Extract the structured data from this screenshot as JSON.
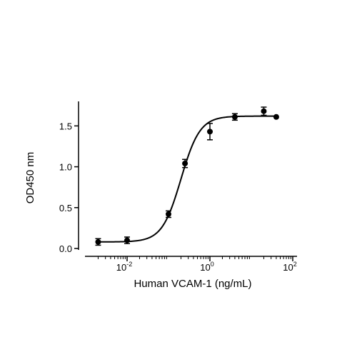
{
  "chart_data": {
    "type": "scatter",
    "xlabel": "Human VCAM-1 (ng/mL)",
    "ylabel": "OD450 nm",
    "xscale": "log10",
    "xlim": [
      0.001,
      100
    ],
    "ylim": [
      0,
      1.8
    ],
    "x_ticks": [
      {
        "value": 0.01,
        "base": "10",
        "exp": "-2"
      },
      {
        "value": 1,
        "base": "10",
        "exp": "0"
      },
      {
        "value": 100,
        "base": "10",
        "exp": "2"
      }
    ],
    "y_ticks": [
      {
        "value": 0.0,
        "label": "0.0"
      },
      {
        "value": 0.5,
        "label": "0.5"
      },
      {
        "value": 1.0,
        "label": "1.0"
      },
      {
        "value": 1.5,
        "label": "1.5"
      }
    ],
    "grid": false,
    "legend": "none",
    "colors": {
      "marker": "#000000",
      "curve": "#000000",
      "axis": "#000000"
    },
    "points": [
      {
        "x": 0.002,
        "y": 0.08,
        "err": 0.04
      },
      {
        "x": 0.01,
        "y": 0.1,
        "err": 0.04
      },
      {
        "x": 0.1,
        "y": 0.42,
        "err": 0.04
      },
      {
        "x": 0.25,
        "y": 1.04,
        "err": 0.05
      },
      {
        "x": 1.0,
        "y": 1.43,
        "err": 0.1
      },
      {
        "x": 4.0,
        "y": 1.61,
        "err": 0.04
      },
      {
        "x": 20.0,
        "y": 1.68,
        "err": 0.05
      },
      {
        "x": 40.0,
        "y": 1.61,
        "err": 0.01
      }
    ],
    "fit_curve": {
      "model": "4PL",
      "bottom": 0.08,
      "top": 1.62,
      "ec50": 0.2,
      "hill": 1.9
    }
  }
}
